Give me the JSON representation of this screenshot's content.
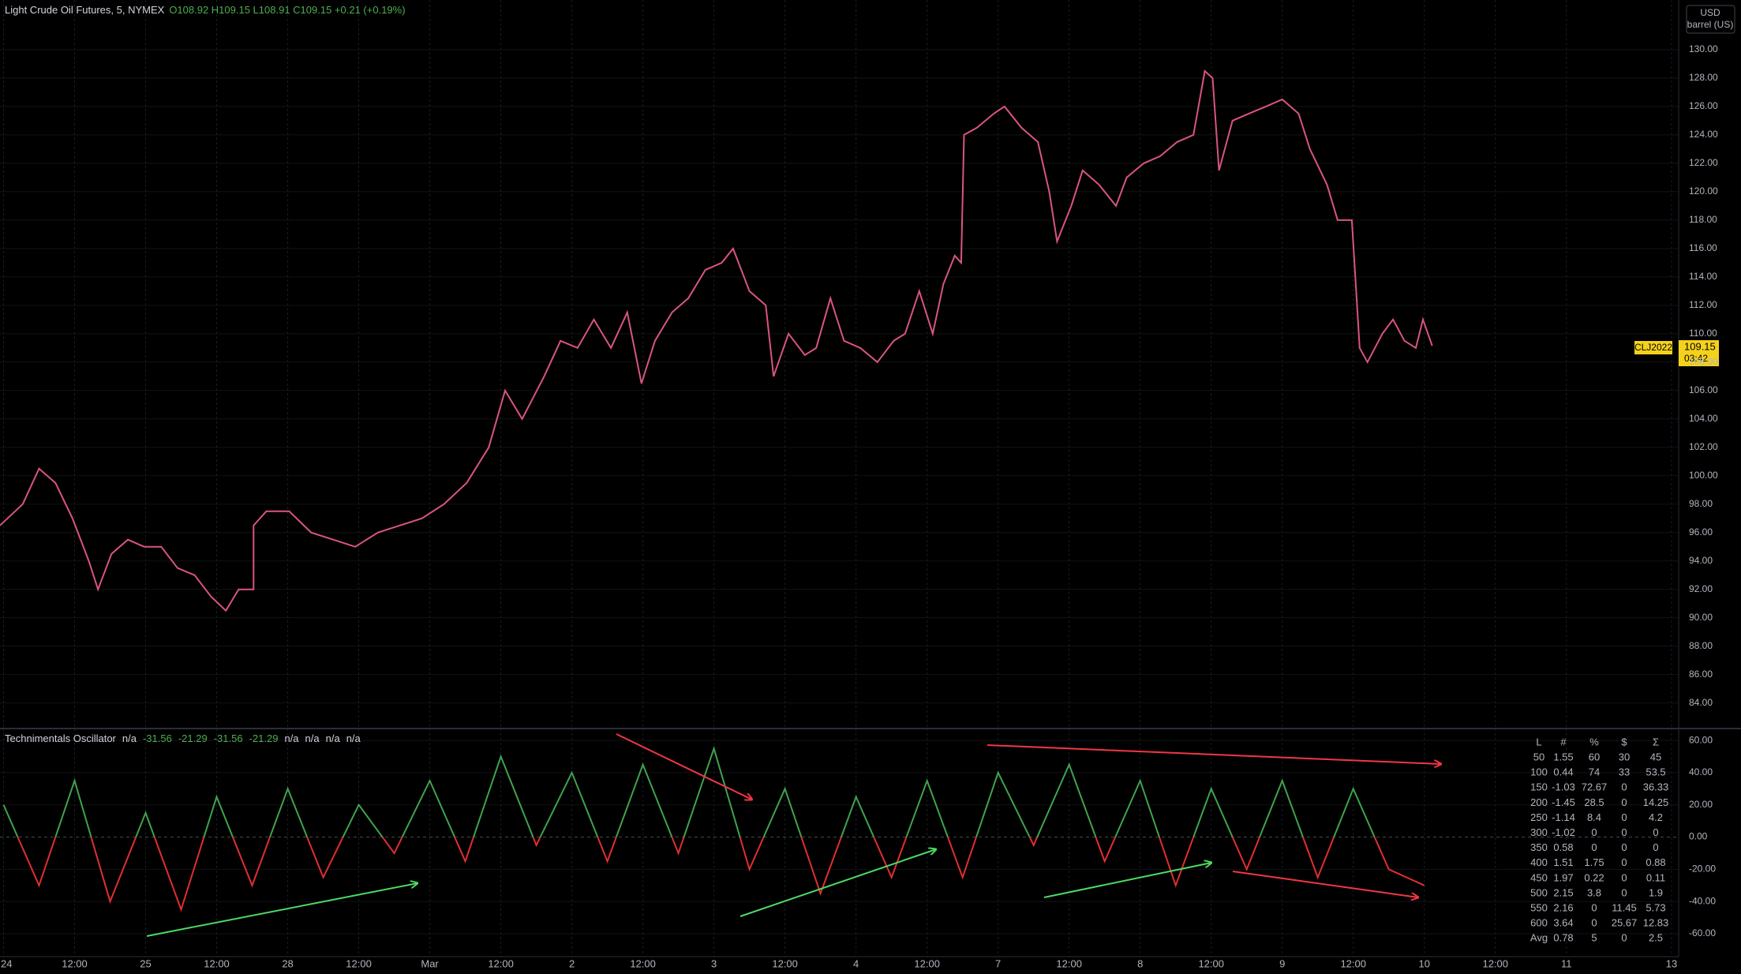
{
  "header": {
    "title": "Light Crude Oil Futures, 5, NYMEX",
    "ohlc": "O108.92 H109.15 L108.91 C109.15 +0.21 (+0.19%)"
  },
  "indicator": {
    "name": "Technimentals Oscillator",
    "values": [
      "n/a",
      "-31.56",
      "-21.29",
      "-31.56",
      "-21.29",
      "n/a",
      "n/a",
      "n/a",
      "n/a"
    ]
  },
  "price_axis": {
    "currency": "USD",
    "unit": "barrel (US)"
  },
  "last_price": {
    "symbol": "CLJ2022",
    "price": "109.15",
    "countdown": "03:42"
  },
  "table": {
    "columns": [
      "L",
      "#",
      "%",
      "$",
      "Σ"
    ],
    "rows": [
      [
        "50",
        "1.55",
        "60",
        "30",
        "45"
      ],
      [
        "100",
        "0.44",
        "74",
        "33",
        "53.5"
      ],
      [
        "150",
        "-1.03",
        "72.67",
        "0",
        "36.33"
      ],
      [
        "200",
        "-1.45",
        "28.5",
        "0",
        "14.25"
      ],
      [
        "250",
        "-1.14",
        "8.4",
        "0",
        "4.2"
      ],
      [
        "300",
        "-1.02",
        "0",
        "0",
        "0"
      ],
      [
        "350",
        "0.58",
        "0",
        "0",
        "0"
      ],
      [
        "400",
        "1.51",
        "1.75",
        "0",
        "0.88"
      ],
      [
        "450",
        "1.97",
        "0.22",
        "0",
        "0.11"
      ],
      [
        "500",
        "2.15",
        "3.8",
        "0",
        "1.9"
      ],
      [
        "550",
        "2.16",
        "0",
        "11.45",
        "5.73"
      ],
      [
        "600",
        "3.64",
        "0",
        "25.67",
        "12.83"
      ],
      [
        "Avg",
        "0.78",
        "5",
        "0",
        "2.5"
      ]
    ]
  },
  "chart_data": [
    {
      "type": "line",
      "color": "#d9557f",
      "grid": true,
      "x": [
        -0.05,
        0.27,
        0.5,
        0.73,
        0.97,
        1.2,
        1.33,
        1.52,
        1.75,
        1.98,
        2.22,
        2.45,
        2.69,
        2.92,
        3.13,
        3.31,
        3.52,
        3.52,
        3.7,
        4.02,
        4.33,
        4.64,
        4.95,
        5.27,
        5.58,
        5.89,
        6.2,
        6.52,
        6.83,
        7.06,
        7.3,
        7.61,
        7.84,
        8.08,
        8.31,
        8.55,
        8.78,
        8.98,
        9.17,
        9.41,
        9.64,
        9.88,
        10.11,
        10.27,
        10.5,
        10.73,
        10.84,
        11.05,
        11.28,
        11.44,
        11.64,
        11.83,
        12.06,
        12.3,
        12.53,
        12.69,
        12.89,
        13.08,
        13.23,
        13.39,
        13.48,
        13.52,
        13.7,
        13.94,
        14.09,
        14.33,
        14.56,
        14.72,
        14.83,
        15.03,
        15.19,
        15.42,
        15.66,
        15.81,
        16.05,
        16.28,
        16.52,
        16.75,
        16.91,
        17.02,
        17.11,
        17.3,
        17.53,
        17.77,
        18.0,
        18.23,
        18.39,
        18.63,
        18.78,
        18.98,
        19.09,
        19.2,
        19.41,
        19.56,
        19.72,
        19.88,
        19.98,
        20.11
      ],
      "values": [
        96.5,
        98,
        100.5,
        99.5,
        97,
        94,
        92,
        94.5,
        95.5,
        95,
        95,
        93.5,
        93,
        91.5,
        90.5,
        92,
        92,
        96.5,
        97.5,
        97.5,
        96,
        95.5,
        95,
        96,
        96.5,
        97,
        98,
        99.5,
        102,
        106,
        104,
        107,
        109.5,
        109,
        111,
        109,
        111.5,
        106.5,
        109.5,
        111.5,
        112.5,
        114.5,
        115,
        116,
        113,
        112,
        107,
        110,
        108.5,
        109,
        112.5,
        109.5,
        109,
        108,
        109.5,
        110,
        113,
        110,
        113.5,
        115.5,
        115,
        124,
        124.5,
        125.5,
        126,
        124.5,
        123.5,
        120,
        116.5,
        119,
        121.5,
        120.5,
        119,
        121,
        122,
        122.5,
        123.5,
        124,
        128.5,
        128,
        121.5,
        125,
        125.5,
        126,
        126.5,
        125.5,
        123,
        120.5,
        118,
        118,
        109,
        108,
        110,
        111,
        109.5,
        109,
        111,
        109.15
      ],
      "xlim": [
        -0.05,
        23.58
      ],
      "xticks": [
        {
          "value": 0,
          "label": "24"
        },
        {
          "value": 1,
          "label": "12:00"
        },
        {
          "value": 2,
          "label": "25"
        },
        {
          "value": 3,
          "label": "12:00"
        },
        {
          "value": 4,
          "label": "28"
        },
        {
          "value": 5,
          "label": "12:00"
        },
        {
          "value": 6,
          "label": "Mar"
        },
        {
          "value": 7,
          "label": "12:00"
        },
        {
          "value": 8,
          "label": "2"
        },
        {
          "value": 9,
          "label": "12:00"
        },
        {
          "value": 10,
          "label": "3"
        },
        {
          "value": 11,
          "label": "12:00"
        },
        {
          "value": 12,
          "label": "4"
        },
        {
          "value": 13,
          "label": "12:00"
        },
        {
          "value": 14,
          "label": "7"
        },
        {
          "value": 15,
          "label": "12:00"
        },
        {
          "value": 16,
          "label": "8"
        },
        {
          "value": 17,
          "label": "12:00"
        },
        {
          "value": 18,
          "label": "9"
        },
        {
          "value": 19,
          "label": "12:00"
        },
        {
          "value": 20,
          "label": "10"
        },
        {
          "value": 21,
          "label": "12:00"
        },
        {
          "value": 22,
          "label": "11"
        },
        {
          "value": 23.48,
          "label": "13"
        }
      ],
      "ylim": [
        82.2,
        133.5
      ],
      "yticks": [
        {
          "value": 84,
          "label": "84.00"
        },
        {
          "value": 86,
          "label": "86.00"
        },
        {
          "value": 88,
          "label": "88.00"
        },
        {
          "value": 90,
          "label": "90.00"
        },
        {
          "value": 92,
          "label": "92.00"
        },
        {
          "value": 94,
          "label": "94.00"
        },
        {
          "value": 96,
          "label": "96.00"
        },
        {
          "value": 98,
          "label": "98.00"
        },
        {
          "value": 100,
          "label": "100.00"
        },
        {
          "value": 102,
          "label": "102.00"
        },
        {
          "value": 104,
          "label": "104.00"
        },
        {
          "value": 106,
          "label": "106.00"
        },
        {
          "value": 108,
          "label": "108.00"
        },
        {
          "value": 110,
          "label": "110.00"
        },
        {
          "value": 112,
          "label": "112.00"
        },
        {
          "value": 114,
          "label": "114.00"
        },
        {
          "value": 116,
          "label": "116.00"
        },
        {
          "value": 118,
          "label": "118.00"
        },
        {
          "value": 120,
          "label": "120.00"
        },
        {
          "value": 122,
          "label": "122.00"
        },
        {
          "value": 124,
          "label": "124.00"
        },
        {
          "value": 126,
          "label": "126.00"
        },
        {
          "value": 128,
          "label": "128.00"
        },
        {
          "value": 130,
          "label": "130.00"
        }
      ]
    },
    {
      "type": "oscillator",
      "color_above": "#3fa34d",
      "color_below": "#e02f2f",
      "grid": true,
      "x": [
        0,
        0.5,
        1,
        1.5,
        2,
        2.5,
        3,
        3.5,
        4,
        4.5,
        5,
        5.5,
        6,
        6.5,
        7,
        7.5,
        8,
        8.5,
        9,
        9.5,
        10,
        10.5,
        11,
        11.5,
        12,
        12.5,
        13,
        13.5,
        14,
        14.5,
        15,
        15.5,
        16,
        16.5,
        17,
        17.5,
        18,
        18.5,
        19,
        19.5,
        20
      ],
      "values": [
        20,
        -30,
        35,
        -40,
        15,
        -45,
        25,
        -30,
        30,
        -25,
        20,
        -10,
        35,
        -15,
        50,
        -5,
        40,
        -15,
        45,
        -10,
        55,
        -20,
        30,
        -35,
        25,
        -25,
        35,
        -25,
        40,
        -5,
        45,
        -15,
        35,
        -30,
        30,
        -20,
        35,
        -25,
        30,
        -20,
        -30
      ],
      "xlim": [
        -0.05,
        23.58
      ],
      "ylim": [
        -74.2,
        67.4
      ],
      "yticks": [
        {
          "value": 60,
          "label": "60.00"
        },
        {
          "value": 40,
          "label": "40.00"
        },
        {
          "value": 20,
          "label": "20.00"
        },
        {
          "value": 0,
          "label": "0.00"
        },
        {
          "value": -20,
          "label": "-20.00"
        },
        {
          "value": -40,
          "label": "-40.00"
        },
        {
          "value": -60,
          "label": "-60.00"
        }
      ]
    }
  ]
}
